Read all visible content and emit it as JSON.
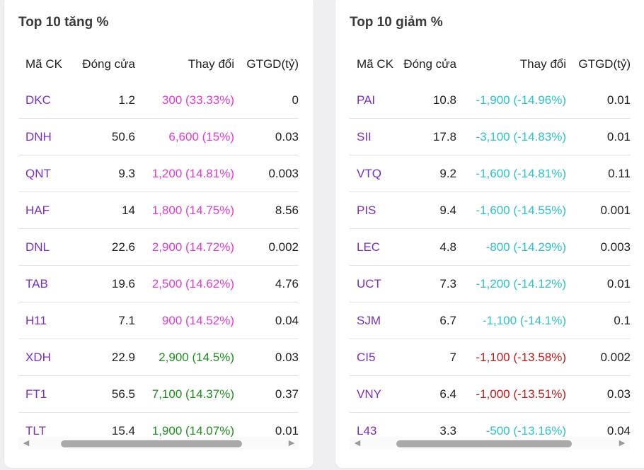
{
  "gainers": {
    "title": "Top 10 tăng %",
    "headers": [
      "Mã CK",
      "Đóng cửa",
      "Thay đổi",
      "GTGD(tỷ)"
    ],
    "rows": [
      {
        "symbol": "DKC",
        "close": "1.2",
        "change": "300 (33.33%)",
        "value": "0",
        "tone": "up-strong"
      },
      {
        "symbol": "DNH",
        "close": "50.6",
        "change": "6,600 (15%)",
        "value": "0.03",
        "tone": "up-strong"
      },
      {
        "symbol": "QNT",
        "close": "9.3",
        "change": "1,200 (14.81%)",
        "value": "0.003",
        "tone": "up-strong"
      },
      {
        "symbol": "HAF",
        "close": "14",
        "change": "1,800 (14.75%)",
        "value": "8.56",
        "tone": "up-strong"
      },
      {
        "symbol": "DNL",
        "close": "22.6",
        "change": "2,900 (14.72%)",
        "value": "0.002",
        "tone": "up-strong"
      },
      {
        "symbol": "TAB",
        "close": "19.6",
        "change": "2,500 (14.62%)",
        "value": "4.76",
        "tone": "up-strong"
      },
      {
        "symbol": "H11",
        "close": "7.1",
        "change": "900 (14.52%)",
        "value": "0.04",
        "tone": "up-strong"
      },
      {
        "symbol": "XDH",
        "close": "22.9",
        "change": "2,900 (14.5%)",
        "value": "0.03",
        "tone": "up"
      },
      {
        "symbol": "FT1",
        "close": "56.5",
        "change": "7,100 (14.37%)",
        "value": "0.37",
        "tone": "up"
      },
      {
        "symbol": "TLT",
        "close": "15.4",
        "change": "1,900 (14.07%)",
        "value": "0.01",
        "tone": "up"
      }
    ]
  },
  "losers": {
    "title": "Top 10 giảm %",
    "headers": [
      "Mã CK",
      "Đóng cửa",
      "Thay đổi",
      "GTGD(tỷ)"
    ],
    "rows": [
      {
        "symbol": "PAI",
        "close": "10.8",
        "change": "-1,900 (-14.96%)",
        "value": "0.01",
        "tone": "down-strong"
      },
      {
        "symbol": "SII",
        "close": "17.8",
        "change": "-3,100 (-14.83%)",
        "value": "0.01",
        "tone": "down-strong"
      },
      {
        "symbol": "VTQ",
        "close": "9.2",
        "change": "-1,600 (-14.81%)",
        "value": "0.11",
        "tone": "down-strong"
      },
      {
        "symbol": "PIS",
        "close": "9.4",
        "change": "-1,600 (-14.55%)",
        "value": "0.001",
        "tone": "down-strong"
      },
      {
        "symbol": "LEC",
        "close": "4.8",
        "change": "-800 (-14.29%)",
        "value": "0.003",
        "tone": "down-strong"
      },
      {
        "symbol": "UCT",
        "close": "7.3",
        "change": "-1,200 (-14.12%)",
        "value": "0.01",
        "tone": "down-strong"
      },
      {
        "symbol": "SJM",
        "close": "6.7",
        "change": "-1,100 (-14.1%)",
        "value": "0.1",
        "tone": "down-strong"
      },
      {
        "symbol": "CI5",
        "close": "7",
        "change": "-1,100 (-13.58%)",
        "value": "0.002",
        "tone": "down"
      },
      {
        "symbol": "VNY",
        "close": "6.4",
        "change": "-1,000 (-13.51%)",
        "value": "0.03",
        "tone": "down"
      },
      {
        "symbol": "L43",
        "close": "3.3",
        "change": "-500 (-13.16%)",
        "value": "0.04",
        "tone": "down-strong"
      }
    ]
  },
  "colors": {
    "symbol": "#7b2fbf",
    "up_strong": "#e23ad6",
    "up": "#1f8f1f",
    "down_strong": "#2dc3c9",
    "down": "#c01a1a"
  },
  "icons": {
    "scroll_left": "caret-left-icon",
    "scroll_right": "caret-right-icon"
  }
}
